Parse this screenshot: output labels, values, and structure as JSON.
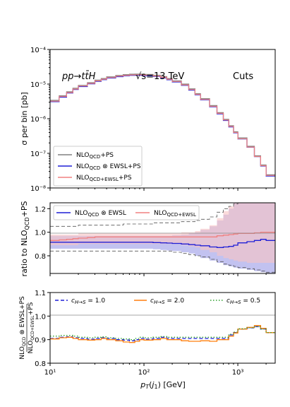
{
  "chart_data": [
    {
      "type": "line",
      "panel": "top",
      "title": "",
      "ylabel": "σ per bin [pb]",
      "xscale": "log",
      "yscale": "log",
      "xlim": [
        10,
        2500
      ],
      "ylim": [
        1e-08,
        0.0001
      ],
      "yticks": [
        "10⁻⁸",
        "10⁻⁷",
        "10⁻⁶",
        "10⁻⁵",
        "10⁻⁴"
      ],
      "annotations": {
        "process": "pp→tt̄H",
        "energy": "√s=13 TeV",
        "cuts": "Cuts"
      },
      "legend_position": "lower-left",
      "bin_edges": [
        10,
        12.5,
        15,
        17.5,
        20,
        25,
        30,
        35,
        40,
        50,
        60,
        70,
        80,
        90,
        100,
        125,
        150,
        175,
        200,
        250,
        300,
        350,
        400,
        500,
        600,
        700,
        800,
        900,
        1000,
        1250,
        1500,
        1750,
        2000,
        2500
      ],
      "series": [
        {
          "name": "NLO_QCD+PS",
          "color": "#808080",
          "values": [
            3.4e-06,
            4.6e-06,
            6e-06,
            7.6e-06,
            9.2e-06,
            1.1e-05,
            1.3e-05,
            1.45e-05,
            1.62e-05,
            1.78e-05,
            1.88e-05,
            1.93e-05,
            1.95e-05,
            1.94e-05,
            1.9e-05,
            1.8e-05,
            1.65e-05,
            1.45e-05,
            1.25e-05,
            1e-05,
            7.3e-06,
            5.3e-06,
            3.8e-06,
            2.4e-06,
            1.5e-06,
            9.6e-07,
            6.3e-07,
            4.2e-07,
            2.8e-07,
            1.6e-07,
            8.5e-08,
            4.6e-08,
            2.4e-08
          ]
        },
        {
          "name": "NLO_QCD ⊗ EWSL+PS",
          "color": "#1f1fd6",
          "values": [
            3.1e-06,
            4.2e-06,
            5.5e-06,
            7e-06,
            8.5e-06,
            1.02e-05,
            1.2e-05,
            1.34e-05,
            1.5e-05,
            1.64e-05,
            1.73e-05,
            1.78e-05,
            1.8e-05,
            1.79e-05,
            1.75e-05,
            1.66e-05,
            1.52e-05,
            1.33e-05,
            1.15e-05,
            9.2e-06,
            6.7e-06,
            4.9e-06,
            3.5e-06,
            2.2e-06,
            1.38e-06,
            8.9e-07,
            5.8e-07,
            3.9e-07,
            2.6e-07,
            1.5e-07,
            8e-08,
            4.3e-08,
            2.2e-08
          ]
        },
        {
          "name": "NLO_QCD+EWSL+PS",
          "color": "#f08080",
          "values": [
            3.2e-06,
            4.4e-06,
            5.7e-06,
            7.2e-06,
            8.8e-06,
            1.05e-05,
            1.24e-05,
            1.38e-05,
            1.55e-05,
            1.7e-05,
            1.79e-05,
            1.84e-05,
            1.86e-05,
            1.85e-05,
            1.81e-05,
            1.72e-05,
            1.57e-05,
            1.38e-05,
            1.19e-05,
            9.5e-06,
            6.95e-06,
            5.05e-06,
            3.6e-06,
            2.28e-06,
            1.43e-06,
            9.2e-07,
            6e-07,
            4e-07,
            2.65e-07,
            1.52e-07,
            8.1e-08,
            4.4e-08,
            2.3e-08
          ]
        }
      ],
      "legend": [
        "NLO_QCD+PS",
        "NLO_QCD ⊗ EWSL+PS",
        "NLO_QCD+EWSL+PS"
      ]
    },
    {
      "type": "area",
      "panel": "middle",
      "ylabel": "ratio to NLO_QCD+PS",
      "xscale": "log",
      "xlim": [
        10,
        2500
      ],
      "ylim": [
        0.65,
        1.25
      ],
      "yticks": [
        "0.8",
        "1.0",
        "1.2"
      ],
      "legend_position": "top",
      "series": [
        {
          "name": "NLO_QCD ⊗ EWSL",
          "color": "#1f1fd6",
          "band_color": "#9a9ae6",
          "values": [
            0.915,
            0.915,
            0.915,
            0.915,
            0.915,
            0.915,
            0.915,
            0.915,
            0.915,
            0.915,
            0.915,
            0.915,
            0.915,
            0.915,
            0.915,
            0.912,
            0.91,
            0.908,
            0.905,
            0.9,
            0.895,
            0.89,
            0.885,
            0.875,
            0.87,
            0.875,
            0.88,
            0.89,
            0.91,
            0.92,
            0.93,
            0.94,
            0.93
          ],
          "upper": [
            0.97,
            0.97,
            0.97,
            0.97,
            0.97,
            0.97,
            0.97,
            0.97,
            0.97,
            0.97,
            0.97,
            0.97,
            0.97,
            0.97,
            0.97,
            0.97,
            0.97,
            0.97,
            0.975,
            0.98,
            0.99,
            1.0,
            1.02,
            1.05,
            1.1,
            1.15,
            1.2,
            1.25,
            1.25,
            1.25,
            1.25,
            1.25,
            1.25
          ],
          "lower": [
            0.86,
            0.86,
            0.86,
            0.86,
            0.86,
            0.86,
            0.86,
            0.86,
            0.86,
            0.86,
            0.86,
            0.86,
            0.86,
            0.86,
            0.86,
            0.855,
            0.85,
            0.845,
            0.84,
            0.83,
            0.82,
            0.8,
            0.78,
            0.76,
            0.74,
            0.72,
            0.71,
            0.7,
            0.69,
            0.68,
            0.67,
            0.66,
            0.65
          ]
        },
        {
          "name": "NLO_QCD+EWSL",
          "color": "#f08080",
          "band_color": "#f9c3c3",
          "values": [
            0.93,
            0.935,
            0.94,
            0.945,
            0.95,
            0.955,
            0.96,
            0.96,
            0.96,
            0.96,
            0.96,
            0.96,
            0.96,
            0.96,
            0.96,
            0.96,
            0.96,
            0.96,
            0.96,
            0.96,
            0.96,
            0.96,
            0.96,
            0.96,
            0.97,
            0.975,
            0.98,
            0.985,
            0.99,
            0.99,
            0.995,
            1.0,
            1.0
          ],
          "upper": [
            0.98,
            0.98,
            0.98,
            0.98,
            0.99,
            0.99,
            0.99,
            0.99,
            0.99,
            0.99,
            0.99,
            0.99,
            0.99,
            0.99,
            0.99,
            0.99,
            0.99,
            0.99,
            0.99,
            1.0,
            1.0,
            1.01,
            1.03,
            1.06,
            1.12,
            1.18,
            1.22,
            1.25,
            1.25,
            1.25,
            1.25,
            1.25,
            1.25
          ],
          "lower": [
            0.89,
            0.89,
            0.89,
            0.89,
            0.9,
            0.9,
            0.9,
            0.9,
            0.9,
            0.9,
            0.9,
            0.9,
            0.9,
            0.9,
            0.9,
            0.9,
            0.9,
            0.9,
            0.9,
            0.89,
            0.88,
            0.87,
            0.85,
            0.83,
            0.8,
            0.78,
            0.77,
            0.76,
            0.75,
            0.74,
            0.74,
            0.74,
            0.74
          ]
        },
        {
          "name": "scale-envelope-upper",
          "color": "#555555",
          "style": "dashed",
          "values": [
            1.05,
            1.05,
            1.05,
            1.05,
            1.06,
            1.06,
            1.06,
            1.06,
            1.06,
            1.06,
            1.07,
            1.07,
            1.07,
            1.07,
            1.07,
            1.08,
            1.08,
            1.08,
            1.08,
            1.09,
            1.09,
            1.1,
            1.11,
            1.13,
            1.17,
            1.2,
            1.22,
            1.24,
            1.25,
            1.25,
            1.25,
            1.25,
            1.25
          ]
        },
        {
          "name": "scale-envelope-lower",
          "color": "#555555",
          "style": "dashed",
          "values": [
            0.84,
            0.84,
            0.84,
            0.84,
            0.84,
            0.84,
            0.84,
            0.84,
            0.84,
            0.84,
            0.84,
            0.84,
            0.84,
            0.84,
            0.84,
            0.84,
            0.84,
            0.84,
            0.83,
            0.82,
            0.81,
            0.8,
            0.79,
            0.77,
            0.75,
            0.73,
            0.72,
            0.71,
            0.7,
            0.69,
            0.68,
            0.67,
            0.66
          ]
        }
      ],
      "legend": [
        "NLO_QCD ⊗ EWSL",
        "NLO_QCD+EWSL"
      ]
    },
    {
      "type": "line",
      "panel": "bottom",
      "ylabel": "NLO_QCD ⊗ EWSL+PS / NLO_QCD+EWSL+PS",
      "xlabel": "p_T(j_1) [GeV]",
      "xscale": "log",
      "xlim": [
        10,
        2500
      ],
      "ylim": [
        0.8,
        1.1
      ],
      "yticks": [
        "0.8",
        "0.9",
        "1.0",
        "1.1"
      ],
      "xticks": [
        "10¹",
        "10²",
        "10³"
      ],
      "legend_position": "top",
      "series": [
        {
          "name": "c_{H→S} = 1.0",
          "color": "#1f1fd6",
          "style": "dashed",
          "values": [
            0.905,
            0.91,
            0.912,
            0.908,
            0.905,
            0.902,
            0.905,
            0.908,
            0.905,
            0.9,
            0.898,
            0.895,
            0.9,
            0.905,
            0.902,
            0.905,
            0.91,
            0.905,
            0.905,
            0.905,
            0.905,
            0.905,
            0.905,
            0.905,
            0.905,
            0.905,
            0.92,
            0.93,
            0.945,
            0.95,
            0.955,
            0.945,
            0.93
          ]
        },
        {
          "name": "c_{H→S} = 2.0",
          "color": "#ff7f0e",
          "style": "solid",
          "values": [
            0.903,
            0.908,
            0.91,
            0.905,
            0.9,
            0.898,
            0.9,
            0.905,
            0.9,
            0.895,
            0.89,
            0.888,
            0.893,
            0.9,
            0.898,
            0.9,
            0.905,
            0.9,
            0.9,
            0.895,
            0.893,
            0.893,
            0.895,
            0.893,
            0.9,
            0.9,
            0.915,
            0.928,
            0.945,
            0.952,
            0.96,
            0.948,
            0.93
          ]
        },
        {
          "name": "c_{H→S} = 0.5",
          "color": "#2ca02c",
          "style": "dotted",
          "values": [
            0.915,
            0.918,
            0.918,
            0.915,
            0.91,
            0.908,
            0.91,
            0.912,
            0.908,
            0.905,
            0.903,
            0.9,
            0.905,
            0.91,
            0.908,
            0.91,
            0.913,
            0.91,
            0.91,
            0.91,
            0.91,
            0.91,
            0.91,
            0.91,
            0.91,
            0.91,
            0.923,
            0.932,
            0.946,
            0.95,
            0.955,
            0.945,
            0.93
          ]
        }
      ],
      "legend": [
        "c_{H→S} = 1.0",
        "c_{H→S} = 2.0",
        "c_{H→S} = 0.5"
      ]
    }
  ]
}
